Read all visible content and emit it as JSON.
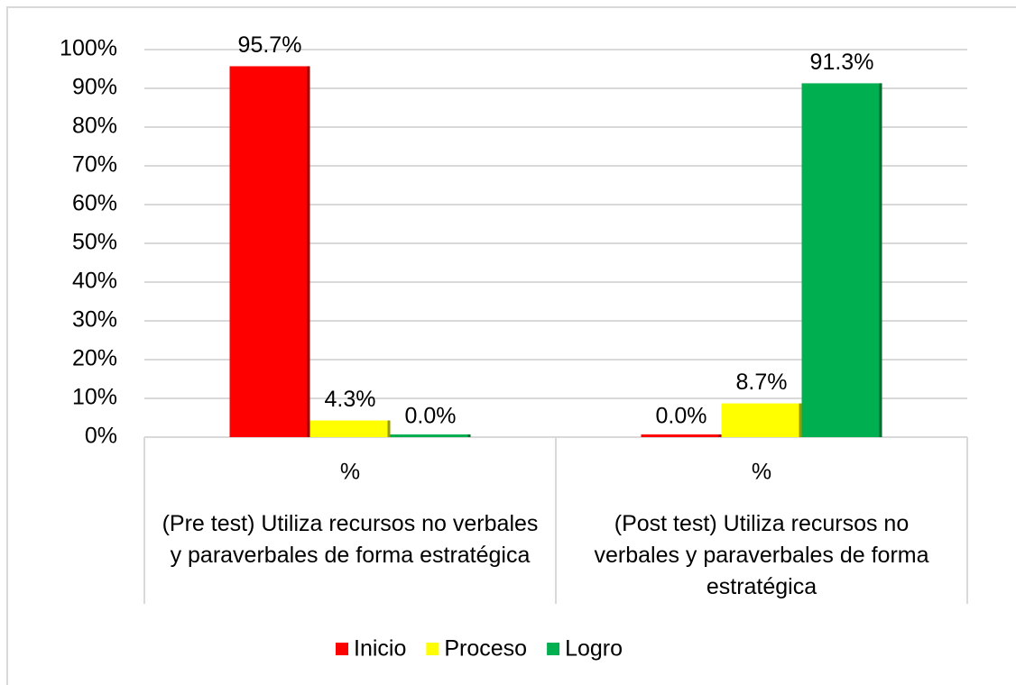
{
  "chart_data": {
    "type": "bar",
    "categories": [
      "%",
      "%"
    ],
    "category_groups": [
      "(Pre test) Utiliza recursos no verbales y paraverbales de forma estratégica",
      "(Post test) Utiliza recursos no verbales y paraverbales de forma estratégica"
    ],
    "series": [
      {
        "name": "Inicio",
        "color": "#ff0000",
        "values": [
          95.7,
          0.0
        ],
        "value_labels": [
          "95.7%",
          "0.0%"
        ]
      },
      {
        "name": "Proceso",
        "color": "#ffff00",
        "values": [
          4.3,
          8.7
        ],
        "value_labels": [
          "4.3%",
          "8.7%"
        ]
      },
      {
        "name": "Logro",
        "color": "#00b050",
        "values": [
          0.0,
          91.3
        ],
        "value_labels": [
          "0.0%",
          "91.3%"
        ]
      }
    ],
    "ylim": [
      0,
      100
    ],
    "yticks": [
      {
        "value": 0,
        "label": "0%"
      },
      {
        "value": 10,
        "label": "10%"
      },
      {
        "value": 20,
        "label": "20%"
      },
      {
        "value": 30,
        "label": "30%"
      },
      {
        "value": 40,
        "label": "40%"
      },
      {
        "value": 50,
        "label": "50%"
      },
      {
        "value": 60,
        "label": "60%"
      },
      {
        "value": 70,
        "label": "70%"
      },
      {
        "value": 80,
        "label": "80%"
      },
      {
        "value": 90,
        "label": "90%"
      },
      {
        "value": 100,
        "label": "100%"
      }
    ],
    "grid": true,
    "legend": "bottom"
  }
}
